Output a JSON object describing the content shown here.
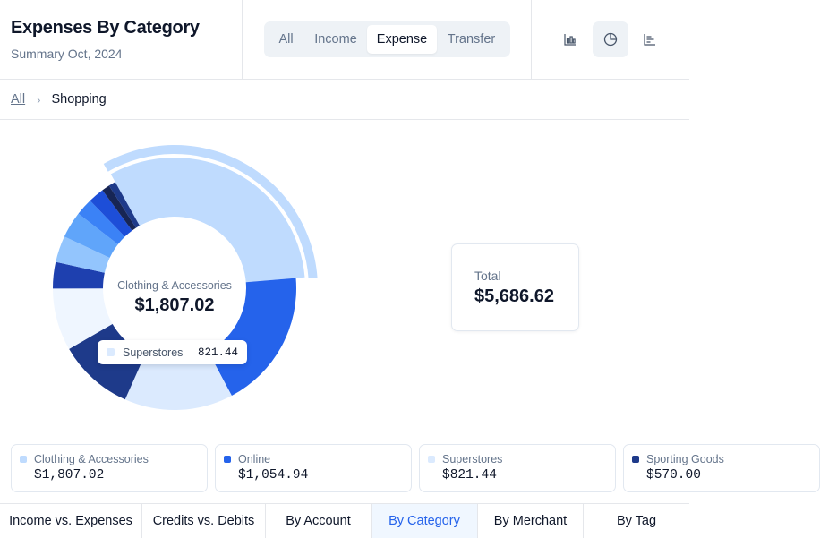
{
  "header": {
    "title": "Expenses By Category",
    "subtitle": "Summary Oct, 2024"
  },
  "type_filter": {
    "items": [
      "All",
      "Income",
      "Expense",
      "Transfer"
    ],
    "selected": "Expense"
  },
  "view_toggle": {
    "icons": [
      "bar-chart-icon",
      "pie-chart-icon",
      "list-chart-icon"
    ],
    "selected": "pie-chart-icon"
  },
  "breadcrumb": {
    "root": "All",
    "current": "Shopping"
  },
  "chart_center": {
    "label": "Clothing & Accessories",
    "value": "$1,807.02"
  },
  "tooltip": {
    "label": "Superstores",
    "value": "821.44",
    "color": "#dbeafe"
  },
  "total": {
    "label": "Total",
    "value": "$5,686.62"
  },
  "chart_data": {
    "type": "pie",
    "total": 5686.62,
    "highlighted": "Clothing & Accessories",
    "slices": [
      {
        "name": "Clothing & Accessories",
        "value": 1807.02,
        "color": "#bfdbfe"
      },
      {
        "name": "Online",
        "value": 1054.94,
        "color": "#2563eb"
      },
      {
        "name": "Superstores",
        "value": 821.44,
        "color": "#dbeafe"
      },
      {
        "name": "Sporting Goods",
        "value": 570.0,
        "color": "#1e3a8a"
      },
      {
        "name": "",
        "value": 470.0,
        "color": "#eff6ff"
      },
      {
        "name": "",
        "value": 200.0,
        "color": "#1e40af"
      },
      {
        "name": "",
        "value": 200.0,
        "color": "#93c5fd"
      },
      {
        "name": "",
        "value": 200.0,
        "color": "#60a5fa"
      },
      {
        "name": "",
        "value": 130.0,
        "color": "#3b82f6"
      },
      {
        "name": "",
        "value": 120.0,
        "color": "#1d4ed8"
      },
      {
        "name": "",
        "value": 60.0,
        "color": "#172554"
      },
      {
        "name": "",
        "value": 53.22,
        "color": "#1e3a8a"
      }
    ]
  },
  "legend": [
    {
      "label": "Clothing & Accessories",
      "value": "$1,807.02",
      "color": "#bfdbfe"
    },
    {
      "label": "Online",
      "value": "$1,054.94",
      "color": "#2563eb"
    },
    {
      "label": "Superstores",
      "value": "$821.44",
      "color": "#dbeafe"
    },
    {
      "label": "Sporting Goods",
      "value": "$570.00",
      "color": "#1e3a8a"
    }
  ],
  "tabs": {
    "items": [
      "Income vs. Expenses",
      "Credits vs. Debits",
      "By Account",
      "By Category",
      "By Merchant",
      "By Tag"
    ],
    "selected": "By Category"
  }
}
